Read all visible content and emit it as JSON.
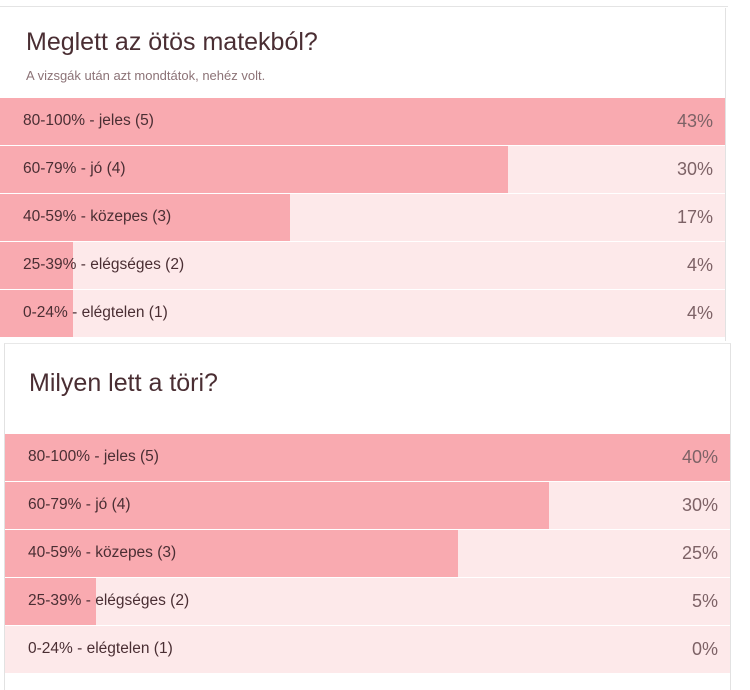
{
  "polls": [
    {
      "title": "Meglett az ötös matekból?",
      "subtitle": "A vizsgák után azt mondtátok, nehéz volt.",
      "options": [
        {
          "label": "80-100% - jeles (5)",
          "percent_text": "43%",
          "fill_fraction": 1.0
        },
        {
          "label": "60-79% - jó (4)",
          "percent_text": "30%",
          "fill_fraction": 0.7
        },
        {
          "label": "40-59% - közepes (3)",
          "percent_text": "17%",
          "fill_fraction": 0.4
        },
        {
          "label": "25-39% - elégséges (2)",
          "percent_text": "4%",
          "fill_fraction": 0.1
        },
        {
          "label": "0-24% - elégtelen (1)",
          "percent_text": "4%",
          "fill_fraction": 0.1
        }
      ]
    },
    {
      "title": "Milyen lett a töri?",
      "options": [
        {
          "label": "80-100% - jeles (5)",
          "percent_text": "40%",
          "fill_fraction": 1.0
        },
        {
          "label": "60-79% - jó (4)",
          "percent_text": "30%",
          "fill_fraction": 0.75
        },
        {
          "label": "40-59% - közepes (3)",
          "percent_text": "25%",
          "fill_fraction": 0.625
        },
        {
          "label": "25-39% - elégséges (2)",
          "percent_text": "5%",
          "fill_fraction": 0.125
        },
        {
          "label": "0-24% - elégtelen (1)",
          "percent_text": "0%",
          "fill_fraction": 0.0
        }
      ]
    }
  ],
  "colors": {
    "bar_fill": "#f9aab0",
    "bar_track": "#fde9ea",
    "title_text": "#4a2e33",
    "percent_text": "#7d6266"
  }
}
